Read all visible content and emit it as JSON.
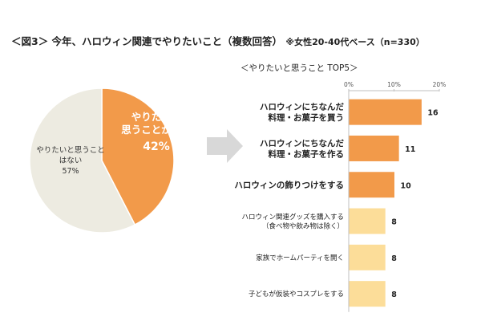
{
  "title": {
    "main": "＜図3＞ 今年、ハロウィン関連でやりたいこと（複数回答）",
    "note": "※女性20-40代ベース（n=330）"
  },
  "colors": {
    "pie_yes": "#F29A4A",
    "pie_no": "#EDEBE1",
    "bar_top": "#F29A4A",
    "bar_rest": "#FCDD99",
    "arrow": "#D8D8D8",
    "grid": "#BFBFBF"
  },
  "chart_data": [
    {
      "type": "pie",
      "slices": [
        {
          "label_lines": [
            "やりたいと",
            "思うことがある"
          ],
          "value": 42,
          "value_label": "42%",
          "color": "#F29A4A"
        },
        {
          "label_lines": [
            "やりたいと思うこと",
            "はない"
          ],
          "value": 57,
          "value_label": "57%",
          "color": "#EDEBE1"
        }
      ]
    },
    {
      "type": "bar",
      "orientation": "horizontal",
      "title": "＜やりたいと思うこと TOP5＞",
      "xlim": [
        0,
        20
      ],
      "ticks": [
        "0%",
        "10%",
        "20%"
      ],
      "categories": [
        {
          "lines": [
            "ハロウィンにちなんだ",
            "料理・お菓子を買う"
          ],
          "bold": true
        },
        {
          "lines": [
            "ハロウィンにちなんだ",
            "料理・お菓子を作る"
          ],
          "bold": true
        },
        {
          "lines": [
            "ハロウィンの飾りつけをする"
          ],
          "bold": true
        },
        {
          "lines": [
            "ハロウィン関連グッズを購入する",
            "（食べ物や飲み物は除く）"
          ],
          "bold": false
        },
        {
          "lines": [
            "家族でホームパーティを開く"
          ],
          "bold": false
        },
        {
          "lines": [
            "子どもが仮装やコスプレをする"
          ],
          "bold": false
        }
      ],
      "values": [
        16,
        11,
        10,
        8,
        8,
        8
      ],
      "value_labels": [
        "16",
        "11",
        "10",
        "8",
        "8",
        "8"
      ],
      "highlight_count": 3
    }
  ]
}
